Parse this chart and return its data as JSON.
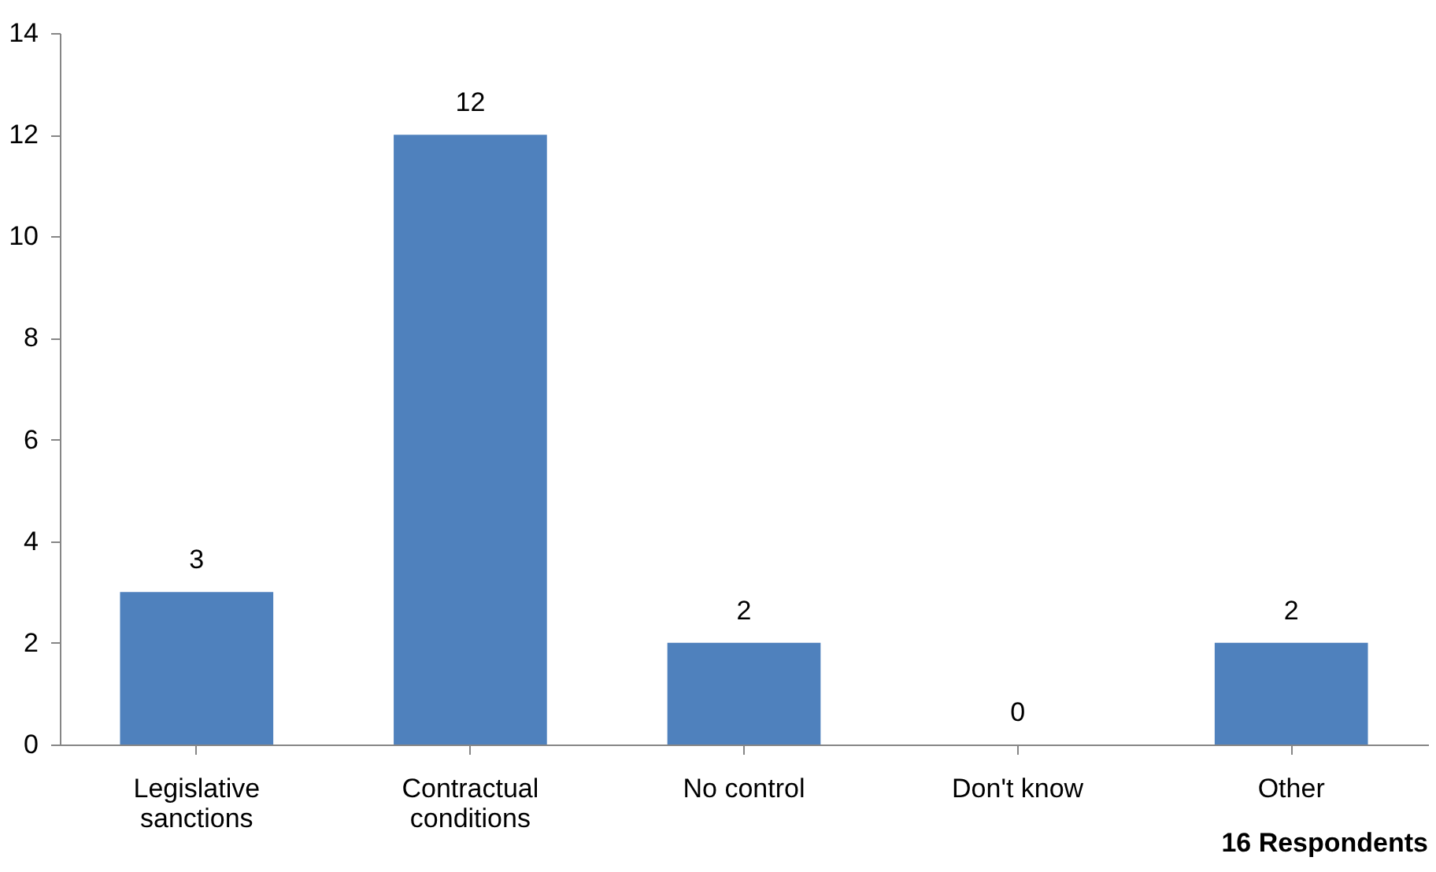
{
  "chart_data": {
    "type": "bar",
    "categories": [
      "Legislative sanctions",
      "Contractual conditions",
      "No control",
      "Don't know",
      "Other"
    ],
    "values": [
      3,
      12,
      2,
      0,
      2
    ],
    "color": "#4f81bd",
    "ylim": [
      0,
      14
    ],
    "yticks": [
      0,
      2,
      4,
      6,
      8,
      10,
      12,
      14
    ],
    "grid": false,
    "data_labels": true,
    "annotations": [
      "16 Respondents"
    ]
  }
}
